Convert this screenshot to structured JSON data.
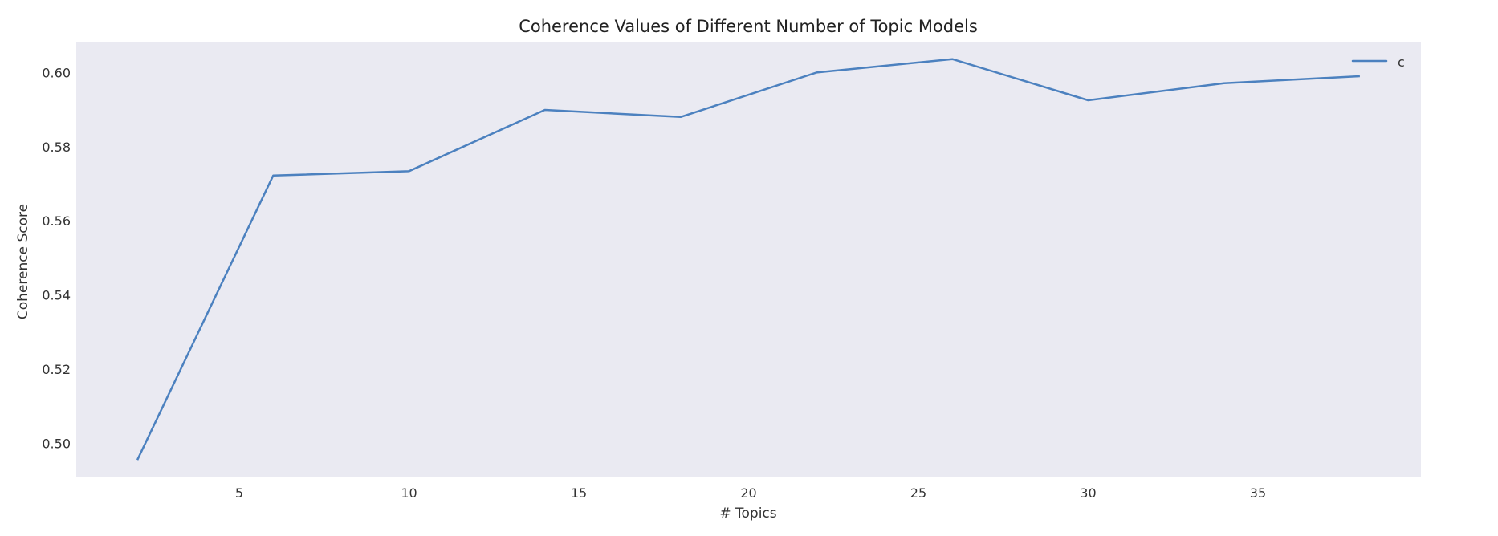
{
  "chart_data": {
    "type": "line",
    "title": "Coherence Values of Different Number of Topic Models",
    "xlabel": "# Topics",
    "ylabel": "Coherence Score",
    "x": [
      2,
      6,
      10,
      14,
      18,
      22,
      26,
      30,
      34,
      38
    ],
    "series": [
      {
        "name": "c",
        "color": "#4c81bf",
        "values": [
          0.4955,
          0.5722,
          0.5734,
          0.5899,
          0.588,
          0.6,
          0.6036,
          0.5925,
          0.5971,
          0.599
        ]
      }
    ],
    "xticks": [
      "5",
      "10",
      "15",
      "20",
      "25",
      "30",
      "35"
    ],
    "yticks": [
      "0.50",
      "0.52",
      "0.54",
      "0.56",
      "0.58",
      "0.60"
    ],
    "xlim": [
      0.2,
      39.8
    ],
    "ylim": [
      0.491,
      0.6083
    ],
    "grid": false,
    "legend_position": "top-right",
    "plot_background": "#eaeaf2"
  }
}
